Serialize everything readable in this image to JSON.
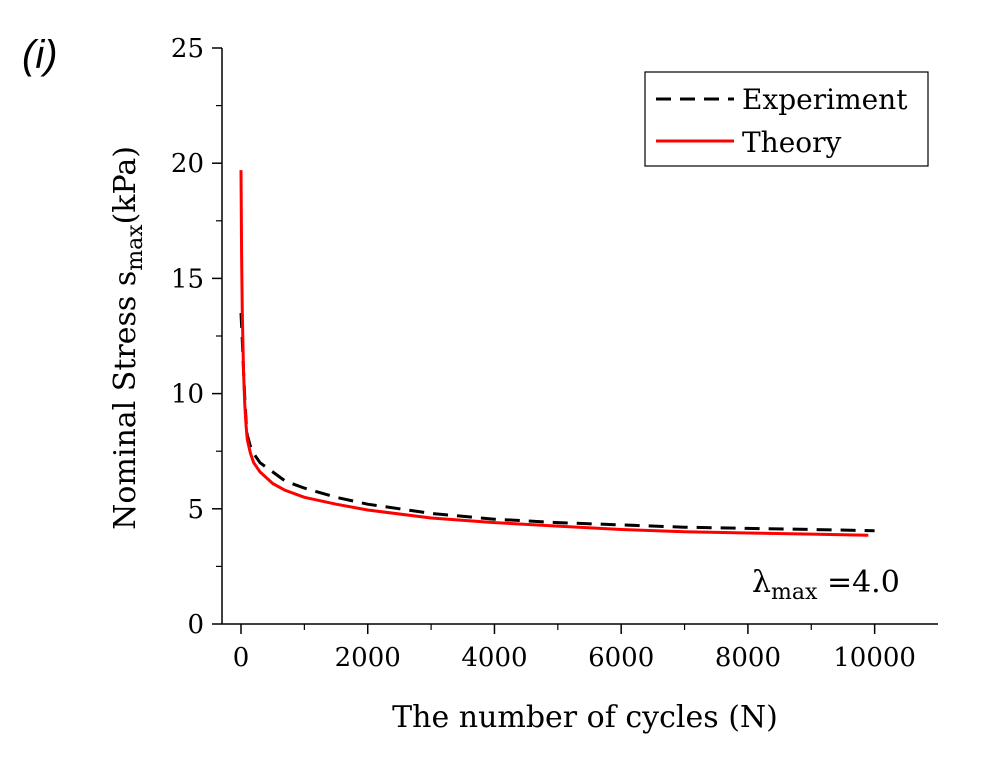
{
  "panel_label": "(i)",
  "chart_data": {
    "type": "line",
    "xlabel": "The number of cycles (N)",
    "ylabel": {
      "main": "Nominal Stress s",
      "subscript": "max",
      "unit": "(kPa)"
    },
    "xlim": [
      -300,
      11000
    ],
    "ylim": [
      0,
      25
    ],
    "x_ticks": [
      0,
      2000,
      4000,
      6000,
      8000,
      10000
    ],
    "x_tick_labels": [
      "0",
      "2000",
      "4000",
      "6000",
      "8000",
      "10000"
    ],
    "y_ticks": [
      0,
      5,
      10,
      15,
      20,
      25
    ],
    "y_tick_labels": [
      "0",
      "5",
      "10",
      "15",
      "20",
      "25"
    ],
    "series": [
      {
        "name": "Experiment",
        "color": "#000000",
        "style": "dashed",
        "x": [
          0,
          20,
          40,
          60,
          80,
          100,
          150,
          200,
          300,
          500,
          700,
          1000,
          1500,
          2000,
          3000,
          4000,
          5000,
          6000,
          7000,
          8000,
          9000,
          10000
        ],
        "y": [
          13.5,
          12.3,
          11.0,
          9.8,
          8.8,
          8.2,
          7.7,
          7.4,
          7.0,
          6.6,
          6.2,
          5.9,
          5.5,
          5.2,
          4.8,
          4.55,
          4.4,
          4.3,
          4.2,
          4.15,
          4.1,
          4.05
        ]
      },
      {
        "name": "Theory",
        "color": "#ff0000",
        "style": "solid",
        "x": [
          0,
          10,
          20,
          40,
          60,
          80,
          100,
          150,
          200,
          300,
          500,
          700,
          1000,
          1500,
          2000,
          3000,
          4000,
          5000,
          6000,
          7000,
          8000,
          9000,
          9900
        ],
        "y": [
          19.7,
          16.0,
          13.5,
          11.0,
          9.5,
          8.6,
          8.0,
          7.4,
          7.0,
          6.6,
          6.1,
          5.8,
          5.5,
          5.2,
          4.95,
          4.6,
          4.4,
          4.25,
          4.1,
          4.0,
          3.95,
          3.9,
          3.85
        ]
      }
    ],
    "legend": {
      "placement": "top-right"
    },
    "annotation": {
      "symbol": "λ",
      "subscript": "max",
      "text": " =4.0"
    },
    "grid": false
  }
}
